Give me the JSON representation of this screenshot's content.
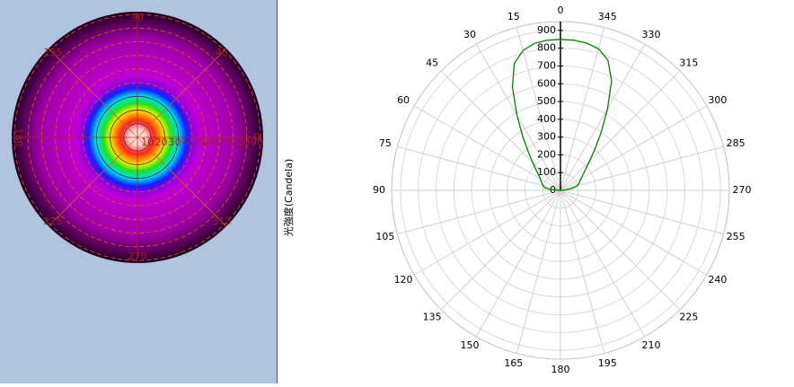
{
  "chart_data": [
    {
      "type": "polar-map",
      "thetaticks": [
        0,
        45,
        90,
        135,
        180,
        225,
        270,
        315
      ],
      "rticks": [
        10,
        20,
        30,
        40,
        50,
        60,
        70,
        80,
        90
      ],
      "rlim": [
        0,
        90
      ]
    },
    {
      "type": "polar",
      "ylabel": "光強度(Candela)",
      "thetaticks": [
        0,
        15,
        30,
        45,
        60,
        75,
        90,
        105,
        120,
        135,
        150,
        165,
        180,
        195,
        210,
        225,
        240,
        255,
        270,
        285,
        300,
        315,
        330,
        345
      ],
      "rlim": [
        0,
        950
      ],
      "rticks": [
        0,
        100,
        200,
        300,
        400,
        500,
        600,
        700,
        800,
        900
      ],
      "grid": true,
      "series": [
        {
          "color": "#008000",
          "x": [
            0,
            5,
            10,
            15,
            20,
            25,
            30,
            35,
            40,
            45,
            50,
            55,
            60,
            65,
            70,
            75,
            80,
            85,
            90,
            270,
            275,
            280,
            285,
            290,
            295,
            300,
            305,
            310,
            315,
            320,
            325,
            330,
            335,
            340,
            345,
            350,
            355,
            360
          ],
          "values": [
            850,
            848,
            840,
            815,
            760,
            640,
            490,
            370,
            280,
            220,
            180,
            150,
            130,
            120,
            110,
            100,
            90,
            60,
            0,
            0,
            30,
            70,
            95,
            110,
            120,
            135,
            155,
            185,
            230,
            300,
            400,
            530,
            680,
            780,
            825,
            842,
            848,
            850
          ]
        }
      ]
    }
  ]
}
